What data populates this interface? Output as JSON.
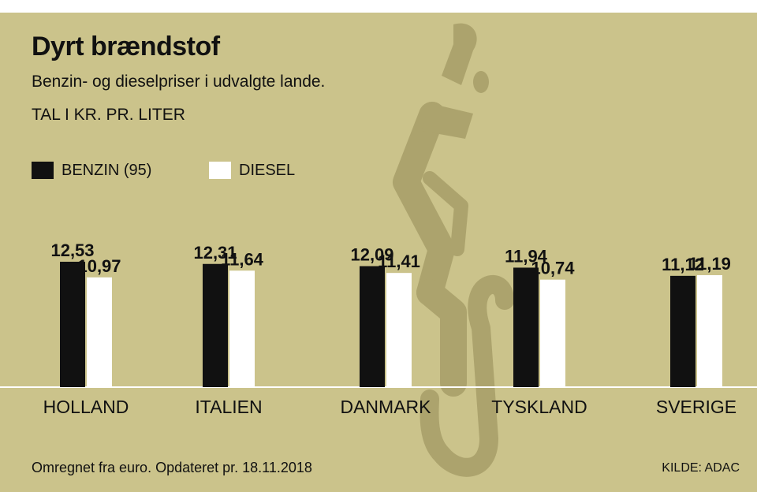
{
  "header": {
    "title": "Dyrt brændstof",
    "subtitle": "Benzin- og dieselpriser i udvalgte lande.",
    "unit": "TAL I  KR. PR. LITER"
  },
  "footer": {
    "note": "Omregnet fra euro. Opdateret pr. 18.11.2018",
    "source": "KILDE: ADAC"
  },
  "colors": {
    "background": "#cbc38b",
    "benzin": "#111111",
    "diesel": "#ffffff",
    "pump_watermark": "#aca36d"
  },
  "chart_data": {
    "type": "bar",
    "categories": [
      "HOLLAND",
      "ITALIEN",
      "DANMARK",
      "TYSKLAND",
      "SVERIGE"
    ],
    "series": [
      {
        "name": "BENZIN (95)",
        "values": [
          12.53,
          12.31,
          12.09,
          11.94,
          11.12
        ],
        "labels": [
          "12,53",
          "12,31",
          "12,09",
          "11,94",
          "11,12"
        ]
      },
      {
        "name": "DIESEL",
        "values": [
          10.97,
          11.64,
          11.41,
          10.74,
          11.19
        ],
        "labels": [
          "10,97",
          "11,64",
          "11,41",
          "10,74",
          "11,19"
        ]
      }
    ],
    "ylim": [
      0,
      13
    ],
    "grid": false,
    "legend": "top-left"
  }
}
